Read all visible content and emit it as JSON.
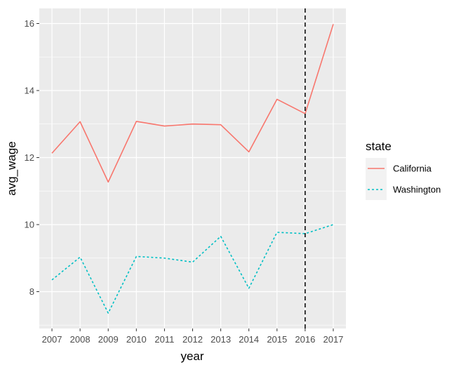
{
  "chart_data": {
    "type": "line",
    "xlabel": "year",
    "ylabel": "avg_wage",
    "x": [
      2007,
      2008,
      2009,
      2010,
      2011,
      2012,
      2013,
      2014,
      2015,
      2016,
      2017
    ],
    "x_tick_labels": [
      "2007",
      "2008",
      "2009",
      "2010",
      "2011",
      "2012",
      "2013",
      "2014",
      "2015",
      "2016",
      "2017"
    ],
    "y_ticks": [
      8,
      10,
      12,
      14,
      16
    ],
    "y_tick_labels": [
      "8",
      "10",
      "12",
      "14",
      "16"
    ],
    "xlim": [
      2006.55,
      2017.45
    ],
    "ylim": [
      6.9,
      16.45
    ],
    "grid": true,
    "panel_background": "#ebebeb",
    "grid_color": "#ffffff",
    "vline": {
      "x": 2016,
      "style": "dashed",
      "color": "#000000"
    },
    "legend": {
      "title": "state",
      "position": "right",
      "key_background": "#f2f2f2"
    },
    "series": [
      {
        "name": "California",
        "color": "#F8766D",
        "linestyle": "solid",
        "values": [
          12.13,
          13.07,
          11.27,
          13.08,
          12.94,
          13.0,
          12.98,
          12.17,
          13.74,
          13.31,
          15.98
        ]
      },
      {
        "name": "Washington",
        "color": "#00BFC4",
        "linestyle": "dotted",
        "values": [
          8.35,
          9.03,
          7.36,
          9.05,
          9.0,
          8.88,
          9.65,
          8.1,
          9.77,
          9.73,
          10.0
        ]
      }
    ]
  }
}
